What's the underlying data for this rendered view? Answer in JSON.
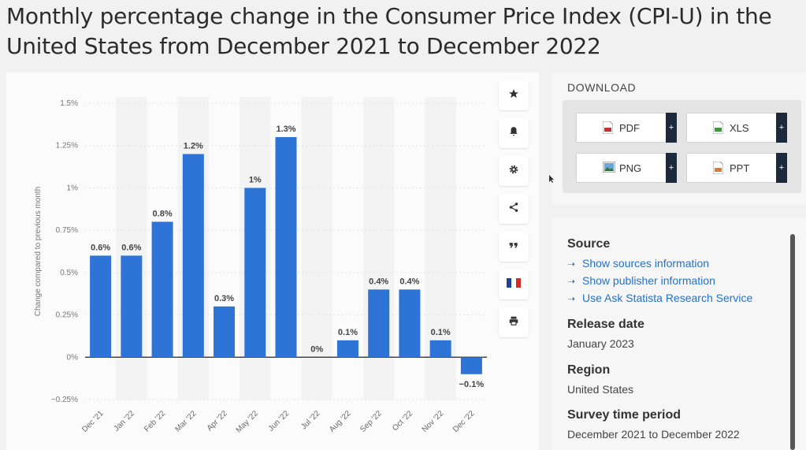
{
  "page": {
    "title": "Monthly percentage change in the Consumer Price Index (CPI-U) in the United States from December 2021 to December 2022"
  },
  "colors": {
    "bar": "#2e74d6",
    "accent": "#1d2a3c",
    "link": "#2471c7"
  },
  "toolbar": {
    "icons": [
      "star-icon",
      "bell-icon",
      "gear-icon",
      "share-icon",
      "quote-icon",
      "french-flag-icon",
      "print-icon"
    ]
  },
  "download": {
    "title": "DOWNLOAD",
    "buttons": [
      {
        "label": "PDF",
        "icon": "pdf-file-icon",
        "plus": "+"
      },
      {
        "label": "XLS",
        "icon": "xls-file-icon",
        "plus": "+"
      },
      {
        "label": "PNG",
        "icon": "png-file-icon",
        "plus": "+"
      },
      {
        "label": "PPT",
        "icon": "ppt-file-icon",
        "plus": "+"
      }
    ]
  },
  "info": {
    "source_heading": "Source",
    "links": [
      "Show sources information",
      "Show publisher information",
      "Use Ask Statista Research Service"
    ],
    "release_heading": "Release date",
    "release_value": "January 2023",
    "region_heading": "Region",
    "region_value": "United States",
    "period_heading": "Survey time period",
    "period_value": "December 2021 to December 2022"
  },
  "chart_data": {
    "type": "bar",
    "categories": [
      "Dec '21",
      "Jan '22",
      "Feb '22",
      "Mar '22",
      "Apr '22",
      "May '22",
      "Jun '22",
      "Jul '22",
      "Aug '22",
      "Sep '22",
      "Oct '22",
      "Nov '22",
      "Dec '22"
    ],
    "values": [
      0.6,
      0.6,
      0.8,
      1.2,
      0.3,
      1.0,
      1.3,
      0.0,
      0.1,
      0.4,
      0.4,
      0.1,
      -0.1
    ],
    "data_labels": [
      "0.6%",
      "0.6%",
      "0.8%",
      "1.2%",
      "0.3%",
      "1%",
      "1.3%",
      "0%",
      "0.1%",
      "0.4%",
      "0.4%",
      "0.1%",
      "−0.1%"
    ],
    "yticks": [
      -0.25,
      0,
      0.25,
      0.5,
      0.75,
      1,
      1.25,
      1.5
    ],
    "ytick_labels": [
      "−0.25%",
      "0%",
      "0.25%",
      "0.5%",
      "0.75%",
      "1%",
      "1.25%",
      "1.5%"
    ],
    "ylim": [
      -0.25,
      1.5
    ],
    "ylabel": "Change compared to previous month",
    "xlabel": "",
    "title": "",
    "grid": true,
    "legend": "none"
  }
}
